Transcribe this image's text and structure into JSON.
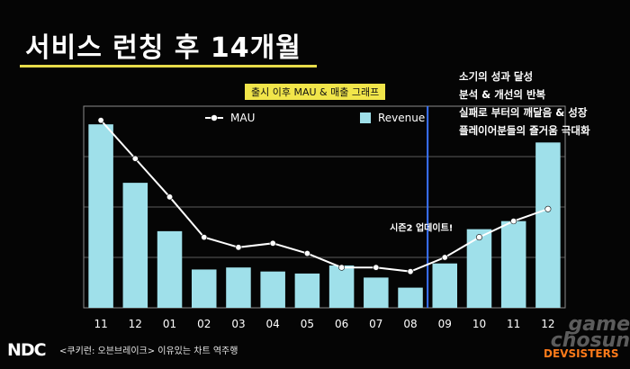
{
  "slide": {
    "title": "서비스 런칭 후 14개월",
    "notes": [
      "소기의 성과 달성",
      "분석 & 개선의 반복",
      "실패로 부터의 깨달음 & 성장",
      "플레이어분들의 즐거움 극대화"
    ],
    "footer_logo": "NDC",
    "footer_caption": "<쿠키런: 오븐브레이크> 이유있는 차트 역주행",
    "watermark": "game chosun",
    "brand": "DEVSISTERS",
    "colors": {
      "background": "#050505",
      "accent": "#e7dc4a",
      "bar": "#9fe0ea",
      "line": "#ffffff",
      "marker_line": "#3a73ff",
      "brand": "#ff7b1a"
    }
  },
  "chart_data": {
    "type": "bar",
    "title": "출시 이후 MAU & 매출 그래프",
    "categories": [
      "11",
      "12",
      "01",
      "02",
      "03",
      "04",
      "05",
      "06",
      "07",
      "08",
      "09",
      "10",
      "11",
      "12"
    ],
    "series": [
      {
        "name": "Revenue",
        "type": "bar",
        "values": [
          91,
          62,
          38,
          19,
          20,
          18,
          17,
          21,
          15,
          10,
          22,
          39,
          43,
          82
        ]
      },
      {
        "name": "MAU",
        "type": "line",
        "values": [
          93,
          74,
          55,
          35,
          30,
          32,
          27,
          20,
          20,
          18,
          25,
          35,
          43,
          49
        ]
      }
    ],
    "ylim": [
      0,
      100
    ],
    "grid": true,
    "legend": "top-left",
    "annotations": [
      {
        "text": "시즌2 업데이트!",
        "category_index": 10,
        "value": 40
      }
    ],
    "marker_after_index": 9
  }
}
